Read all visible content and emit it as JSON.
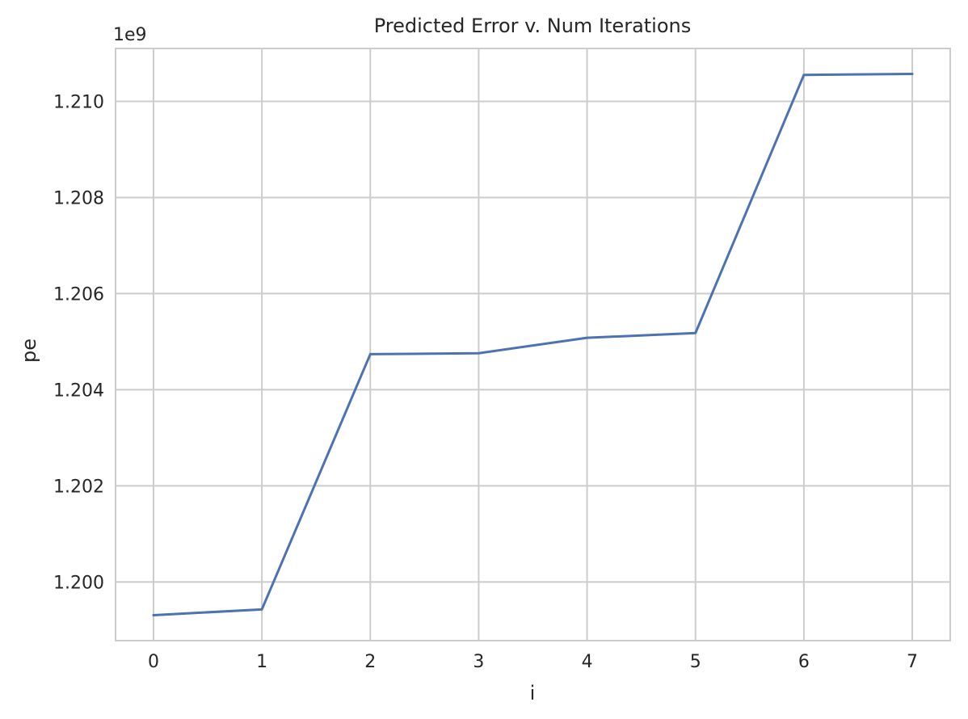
{
  "chart_data": {
    "type": "line",
    "title": "Predicted Error v. Num Iterations",
    "xlabel": "i",
    "ylabel": "pe",
    "y_offset_label": "1e9",
    "x": [
      0,
      1,
      2,
      3,
      4,
      5,
      6,
      7
    ],
    "series": [
      {
        "values": [
          1199310000.0,
          1199430000.0,
          1204740000.0,
          1204760000.0,
          1205080000.0,
          1205180000.0,
          1210550000.0,
          1210570000.0
        ],
        "color": "#4c72b0"
      }
    ],
    "xlim": [
      -0.35,
      7.35
    ],
    "ylim": [
      1198780000.0,
      1211100000.0
    ],
    "x_ticks": [
      0,
      1,
      2,
      3,
      4,
      5,
      6,
      7
    ],
    "x_tick_labels": [
      "0",
      "1",
      "2",
      "3",
      "4",
      "5",
      "6",
      "7"
    ],
    "y_ticks": [
      1200000000.0,
      1202000000.0,
      1204000000.0,
      1206000000.0,
      1208000000.0,
      1210000000.0
    ],
    "y_tick_labels": [
      "1.200",
      "1.202",
      "1.204",
      "1.206",
      "1.208",
      "1.210"
    ],
    "grid": true,
    "legend": "none"
  }
}
